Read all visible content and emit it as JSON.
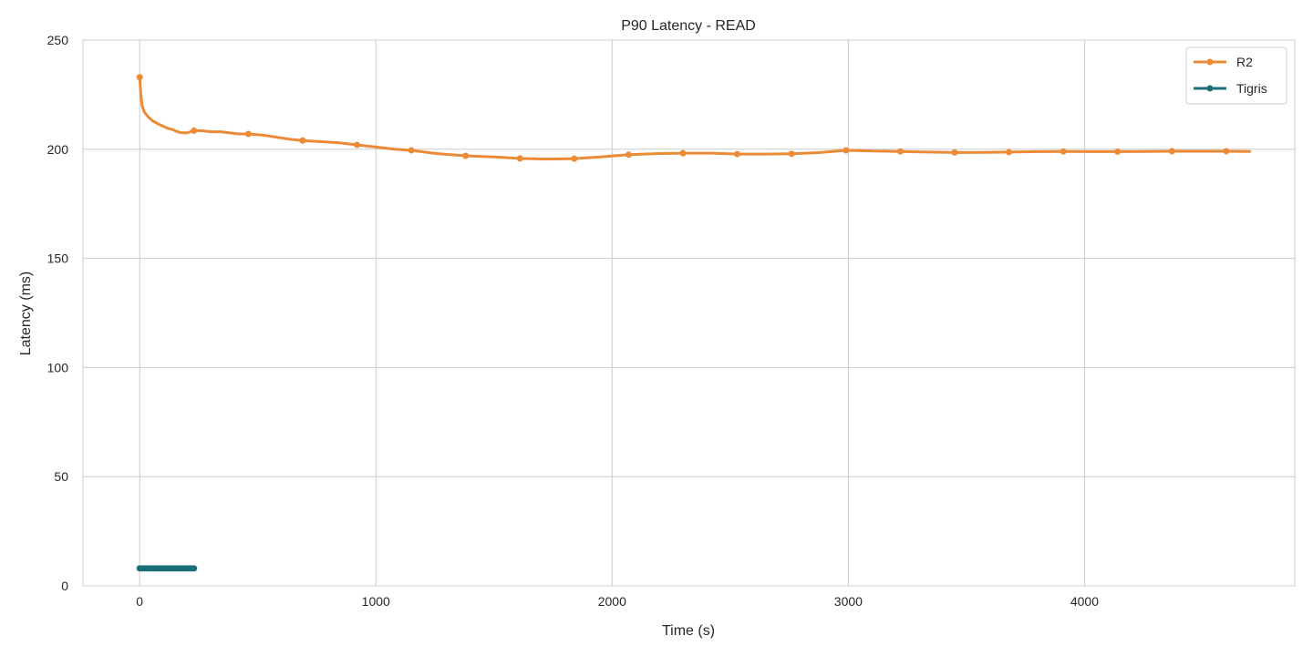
{
  "chart_data": {
    "type": "line",
    "title": "P90 Latency - READ",
    "xlabel": "Time (s)",
    "ylabel": "Latency (ms)",
    "xlim": [
      -240,
      4890
    ],
    "ylim": [
      0,
      250
    ],
    "xticks": [
      0,
      1000,
      2000,
      3000,
      4000
    ],
    "yticks": [
      0,
      50,
      100,
      150,
      200,
      250
    ],
    "grid": true,
    "legend_position": "top-right",
    "series": [
      {
        "name": "R2",
        "color": "#ec8a35",
        "line": [
          [
            0,
            233
          ],
          [
            5,
            225
          ],
          [
            10,
            220
          ],
          [
            20,
            217
          ],
          [
            35,
            215
          ],
          [
            55,
            213
          ],
          [
            80,
            211.5
          ],
          [
            100,
            210.5
          ],
          [
            120,
            209.5
          ],
          [
            140,
            209
          ],
          [
            160,
            208
          ],
          [
            180,
            207.5
          ],
          [
            200,
            207.5
          ],
          [
            230,
            208.5
          ],
          [
            260,
            208.5
          ],
          [
            300,
            208
          ],
          [
            340,
            208
          ],
          [
            380,
            207.5
          ],
          [
            420,
            207
          ],
          [
            460,
            207
          ],
          [
            520,
            206.5
          ],
          [
            580,
            205.5
          ],
          [
            640,
            204.5
          ],
          [
            690,
            204
          ],
          [
            760,
            203.5
          ],
          [
            840,
            203
          ],
          [
            920,
            202
          ],
          [
            1000,
            201
          ],
          [
            1080,
            200
          ],
          [
            1150,
            199.5
          ],
          [
            1260,
            198
          ],
          [
            1380,
            197
          ],
          [
            1500,
            196.5
          ],
          [
            1610,
            195.8
          ],
          [
            1720,
            195.5
          ],
          [
            1840,
            195.7
          ],
          [
            1950,
            196.5
          ],
          [
            2070,
            197.5
          ],
          [
            2190,
            198
          ],
          [
            2300,
            198.2
          ],
          [
            2420,
            198.2
          ],
          [
            2530,
            197.8
          ],
          [
            2650,
            197.8
          ],
          [
            2760,
            197.9
          ],
          [
            2880,
            198.5
          ],
          [
            2990,
            199.5
          ],
          [
            3110,
            199.2
          ],
          [
            3220,
            199
          ],
          [
            3340,
            198.7
          ],
          [
            3450,
            198.5
          ],
          [
            3570,
            198.6
          ],
          [
            3680,
            198.7
          ],
          [
            3800,
            198.9
          ],
          [
            3910,
            199
          ],
          [
            4030,
            198.9
          ],
          [
            4140,
            198.9
          ],
          [
            4260,
            199
          ],
          [
            4370,
            199.1
          ],
          [
            4490,
            199.1
          ],
          [
            4600,
            199.1
          ],
          [
            4700,
            199
          ]
        ],
        "markers": [
          [
            0,
            233
          ],
          [
            230,
            208.5
          ],
          [
            460,
            207
          ],
          [
            690,
            204
          ],
          [
            920,
            202
          ],
          [
            1150,
            199.5
          ],
          [
            1380,
            197
          ],
          [
            1610,
            195.8
          ],
          [
            1840,
            195.7
          ],
          [
            2070,
            197.5
          ],
          [
            2300,
            198.2
          ],
          [
            2530,
            197.8
          ],
          [
            2760,
            197.9
          ],
          [
            2990,
            199.5
          ],
          [
            3220,
            199
          ],
          [
            3450,
            198.5
          ],
          [
            3680,
            198.7
          ],
          [
            3910,
            199
          ],
          [
            4140,
            198.9
          ],
          [
            4370,
            199.1
          ],
          [
            4600,
            199.1
          ]
        ]
      },
      {
        "name": "Tigris",
        "color": "#1a6e78",
        "line": [
          [
            0,
            8
          ],
          [
            230,
            8
          ]
        ],
        "markers": [
          [
            0,
            8
          ],
          [
            10,
            8
          ],
          [
            20,
            8
          ],
          [
            30,
            8
          ],
          [
            40,
            8
          ],
          [
            50,
            8
          ],
          [
            60,
            8
          ],
          [
            70,
            8
          ],
          [
            80,
            8
          ],
          [
            90,
            8
          ],
          [
            100,
            8
          ],
          [
            110,
            8
          ],
          [
            120,
            8
          ],
          [
            130,
            8
          ],
          [
            140,
            8
          ],
          [
            150,
            8
          ],
          [
            160,
            8
          ],
          [
            170,
            8
          ],
          [
            180,
            8
          ],
          [
            190,
            8
          ],
          [
            200,
            8
          ],
          [
            210,
            8
          ],
          [
            220,
            8
          ],
          [
            230,
            8
          ]
        ]
      }
    ]
  }
}
